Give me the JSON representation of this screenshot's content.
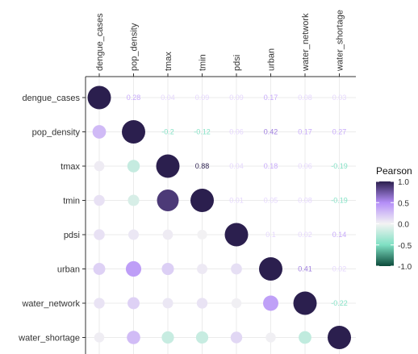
{
  "chart_data": {
    "type": "heatmap",
    "variables": [
      "dengue_cases",
      "pop_density",
      "tmax",
      "tmin",
      "pdsi",
      "urban",
      "water_network",
      "water_shortage"
    ],
    "correlations": [
      [
        1.0,
        0.28,
        0.04,
        0.09,
        0.09,
        0.17,
        0.08,
        0.03
      ],
      [
        0.28,
        1.0,
        -0.2,
        -0.12,
        0.06,
        0.42,
        0.17,
        0.27
      ],
      [
        0.04,
        -0.2,
        1.0,
        0.88,
        0.04,
        0.18,
        0.06,
        -0.19
      ],
      [
        0.09,
        -0.12,
        0.88,
        1.0,
        0.01,
        0.05,
        0.08,
        -0.19
      ],
      [
        0.09,
        0.06,
        0.04,
        0.01,
        1.0,
        0.1,
        0.02,
        0.14
      ],
      [
        0.17,
        0.42,
        0.18,
        0.05,
        0.1,
        1.0,
        0.41,
        0.02
      ],
      [
        0.08,
        0.17,
        0.06,
        0.08,
        0.02,
        0.41,
        1.0,
        -0.22
      ],
      [
        0.03,
        0.27,
        -0.19,
        -0.19,
        0.14,
        0.02,
        -0.22,
        1.0
      ]
    ],
    "upper_labels": [
      [
        "0.28",
        "0.04",
        "0.09",
        "0.09",
        "0.17",
        "0.08",
        "0.03"
      ],
      [
        "-0.2",
        "-0.12",
        "0.06",
        "0.42",
        "0.17",
        "0.27"
      ],
      [
        "0.88",
        "0.04",
        "0.18",
        "0.06",
        "-0.19"
      ],
      [
        "0.01",
        "0.05",
        "0.08",
        "-0.19"
      ],
      [
        "0.1",
        "0.02",
        "0.14"
      ],
      [
        "0.41",
        "0.02"
      ],
      [
        "-0.22"
      ]
    ],
    "legend": {
      "title": "Pearson",
      "ticks": [
        "1.0",
        "0.5",
        "0.0",
        "-0.5",
        "-1.0"
      ],
      "placement": "right"
    },
    "grid": true,
    "color_range": [
      -1,
      1
    ],
    "colors": {
      "neg_strong": "#0b4a3a",
      "neg_mid": "#7fe0c3",
      "zero": "#f3f3f3",
      "pos_mid": "#b48ef8",
      "pos_strong": "#2b1f4e"
    }
  }
}
